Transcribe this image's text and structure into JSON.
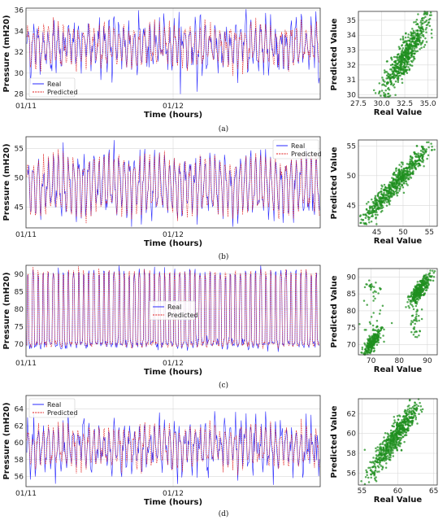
{
  "figure": {
    "panels": [
      {
        "caption": "(a)",
        "timeseries": {
          "ylabel": "Pressure (mH20)",
          "xlabel": "Time (hours)",
          "xticks": [
            "01/11",
            "01/12"
          ],
          "yticks": [
            28,
            30,
            32,
            34,
            36
          ],
          "ylim": [
            27.5,
            36.2
          ],
          "legend": [
            "Real",
            "Predicted"
          ],
          "legend_position": "lower-left",
          "mean": 32.6,
          "amp": 2.0,
          "noise": 0.9,
          "min_spike": 28,
          "max_spike": 36
        },
        "scatter": {
          "xlabel": "Real Value",
          "ylabel": "Predicted Value",
          "xticks": [
            "27.5",
            "30.0",
            "32.5",
            "35.0"
          ],
          "xtick_vals": [
            27.5,
            30.0,
            32.5,
            35.0
          ],
          "yticks": [
            30,
            31,
            32,
            33,
            34,
            35
          ],
          "xlim": [
            27.5,
            36.0
          ],
          "ylim": [
            29.8,
            35.6
          ],
          "cluster": {
            "center": [
              32.6,
              32.6
            ],
            "spread": 1.3,
            "scatter": 0.55
          }
        }
      },
      {
        "caption": "(b)",
        "timeseries": {
          "ylabel": "Pressure (mH20)",
          "xlabel": "Time (hours)",
          "xticks": [
            "01/11",
            "01/12"
          ],
          "yticks": [
            45,
            50,
            55
          ],
          "ylim": [
            41.5,
            57
          ],
          "legend": [
            "Real",
            "Predicted"
          ],
          "legend_position": "upper-right",
          "mean": 48.7,
          "amp": 5.2,
          "noise": 1.0
        },
        "scatter": {
          "xlabel": "Real Value",
          "ylabel": "Predicted Value",
          "xticks": [
            "45",
            "50",
            "55"
          ],
          "xtick_vals": [
            45,
            50,
            55
          ],
          "yticks": [
            45,
            50,
            55
          ],
          "xlim": [
            41.5,
            56.5
          ],
          "ylim": [
            41.5,
            56.0
          ],
          "cluster": {
            "center": [
              48.5,
              48.5
            ],
            "spread": 3.3,
            "scatter": 0.9
          }
        }
      },
      {
        "caption": "(c)",
        "timeseries": {
          "ylabel": "Pressure (mH20)",
          "xlabel": "Time (hours)",
          "xticks": [
            "01/11",
            "01/12"
          ],
          "yticks": [
            70,
            75,
            80,
            85,
            90
          ],
          "ylim": [
            66.5,
            92.5
          ],
          "legend": [
            "Real",
            "Predicted"
          ],
          "legend_position": "center",
          "low": 70.5,
          "high": 88.0,
          "noise": 1.0
        },
        "scatter": {
          "xlabel": "Real Value",
          "ylabel": "Predicted Value",
          "xticks": [
            "70",
            "80",
            "90"
          ],
          "xtick_vals": [
            70,
            80,
            90
          ],
          "yticks": [
            70,
            75,
            80,
            85,
            90
          ],
          "xlim": [
            65.5,
            93.5
          ],
          "ylim": [
            67.0,
            92.5
          ],
          "clusters": [
            [
              70.5,
              71.0
            ],
            [
              87.5,
              86.5
            ]
          ]
        }
      },
      {
        "caption": "(d)",
        "timeseries": {
          "ylabel": "Pressure (mH20)",
          "xlabel": "Time (hours)",
          "xticks": [
            "01/11",
            "01/12"
          ],
          "yticks": [
            56,
            58,
            60,
            62,
            64
          ],
          "ylim": [
            54.8,
            65.6
          ],
          "legend": [
            "Real",
            "Predicted"
          ],
          "legend_position": "upper-left",
          "mean": 59.5,
          "amp": 2.4,
          "noise": 1.0
        },
        "scatter": {
          "xlabel": "Real Value",
          "ylabel": "Predicted Value",
          "xticks": [
            "55",
            "60",
            "65"
          ],
          "xtick_vals": [
            55,
            60,
            65
          ],
          "yticks": [
            56,
            58,
            60,
            62
          ],
          "xlim": [
            54.5,
            65.5
          ],
          "ylim": [
            54.8,
            63.5
          ],
          "cluster": {
            "center": [
              59.6,
              59.6
            ],
            "spread": 1.7,
            "scatter": 0.65
          }
        }
      }
    ],
    "colors": {
      "real": "#2a2aff",
      "predicted": "#e01a1a",
      "scatter": "#1f8f1f",
      "grid": "#d9d9d9"
    }
  },
  "chart_data": [
    {
      "type": "line",
      "panel": "a",
      "xlabel": "Time (hours)",
      "ylabel": "Pressure (mH20)",
      "series": [
        {
          "name": "Real"
        },
        {
          "name": "Predicted"
        }
      ],
      "x_ticks": [
        "01/11",
        "01/12"
      ],
      "ylim": [
        27.5,
        36.2
      ],
      "approx_range": [
        28,
        36
      ]
    },
    {
      "type": "scatter",
      "panel": "a",
      "xlabel": "Real Value",
      "ylabel": "Predicted Value",
      "xlim": [
        27.5,
        36.0
      ],
      "ylim": [
        29.8,
        35.6
      ]
    },
    {
      "type": "line",
      "panel": "b",
      "xlabel": "Time (hours)",
      "ylabel": "Pressure (mH20)",
      "series": [
        {
          "name": "Real"
        },
        {
          "name": "Predicted"
        }
      ],
      "x_ticks": [
        "01/11",
        "01/12"
      ],
      "ylim": [
        41.5,
        57
      ],
      "approx_range": [
        42,
        56
      ]
    },
    {
      "type": "scatter",
      "panel": "b",
      "xlabel": "Real Value",
      "ylabel": "Predicted Value",
      "xlim": [
        41.5,
        56.5
      ],
      "ylim": [
        41.5,
        56.0
      ]
    },
    {
      "type": "line",
      "panel": "c",
      "xlabel": "Time (hours)",
      "ylabel": "Pressure (mH20)",
      "series": [
        {
          "name": "Real"
        },
        {
          "name": "Predicted"
        }
      ],
      "x_ticks": [
        "01/11",
        "01/12"
      ],
      "ylim": [
        66.5,
        92.5
      ],
      "approx_range": [
        68,
        91
      ]
    },
    {
      "type": "scatter",
      "panel": "c",
      "xlabel": "Real Value",
      "ylabel": "Predicted Value",
      "xlim": [
        65.5,
        93.5
      ],
      "ylim": [
        67.0,
        92.5
      ]
    },
    {
      "type": "line",
      "panel": "d",
      "xlabel": "Time (hours)",
      "ylabel": "Pressure (mH20)",
      "series": [
        {
          "name": "Real"
        },
        {
          "name": "Predicted"
        }
      ],
      "x_ticks": [
        "01/11",
        "01/12"
      ],
      "ylim": [
        54.8,
        65.6
      ],
      "approx_range": [
        55,
        65
      ]
    },
    {
      "type": "scatter",
      "panel": "d",
      "xlabel": "Real Value",
      "ylabel": "Predicted Value",
      "xlim": [
        54.5,
        65.5
      ],
      "ylim": [
        54.8,
        63.5
      ]
    }
  ]
}
